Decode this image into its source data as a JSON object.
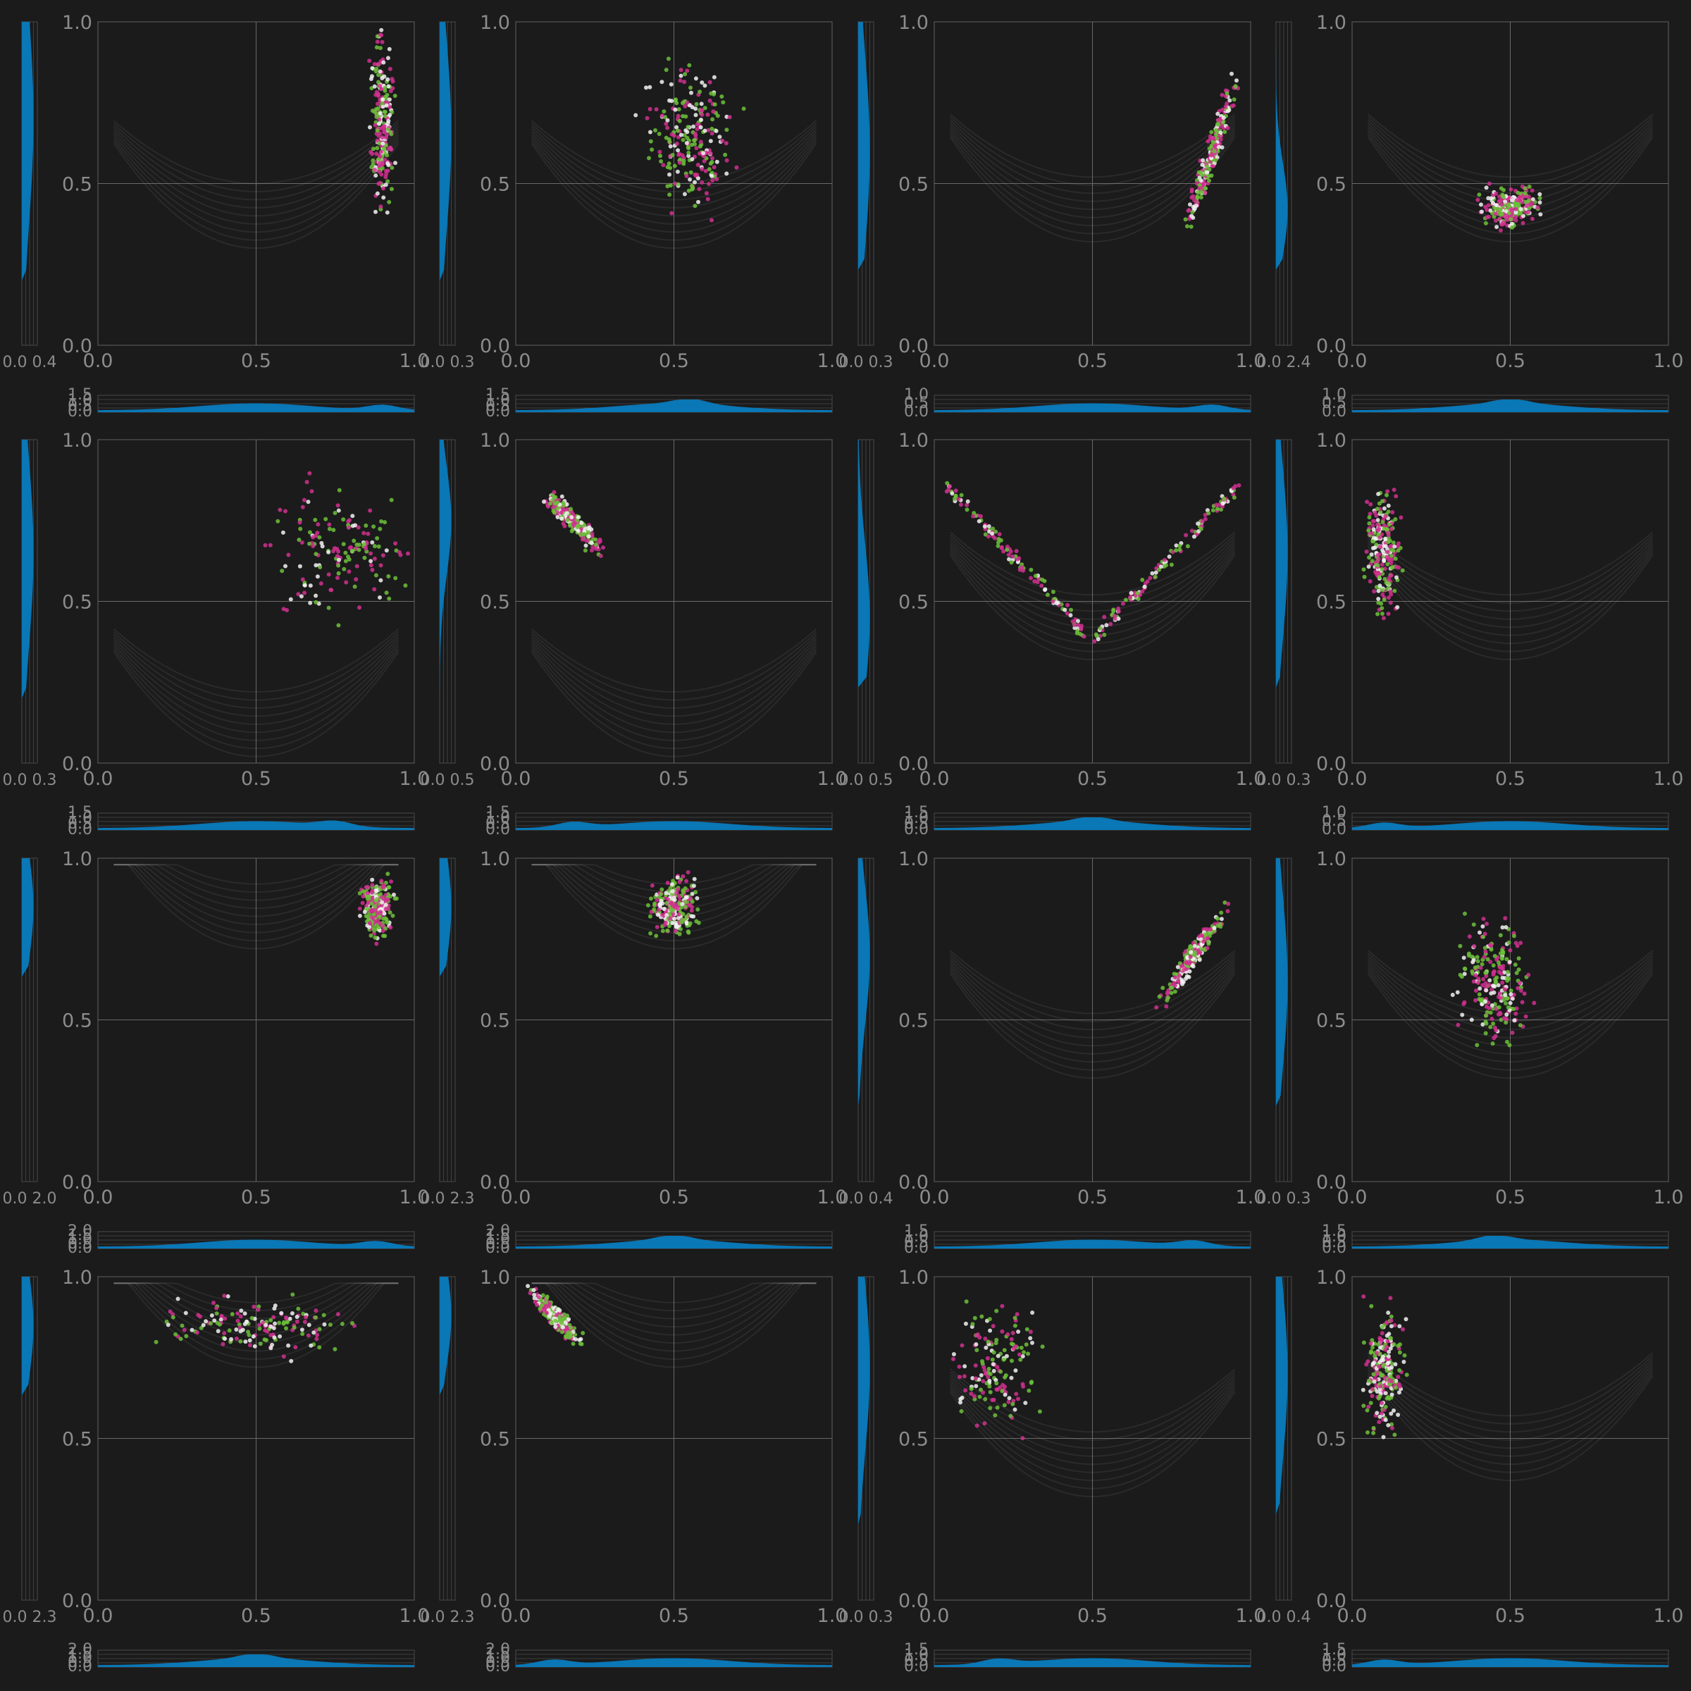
{
  "figure": {
    "background": "#1b1b1b",
    "panel_background": "#1b1b1b",
    "frame_color": "#4a4a4a",
    "grid_color": "#6a6a6a",
    "tick_color": "#8c8c8c"
  },
  "chart_data": {
    "type": "scatter",
    "layout": {
      "rows": 4,
      "cols": 4
    },
    "colors": {
      "pink": "#d0308f",
      "green": "#6cbf3a",
      "white": "#f2f2f2",
      "faint": "#9a9a9a",
      "marginal": "#0a77b6"
    },
    "panels": [
      {
        "name": "r1c1",
        "xlim": [
          0,
          1
        ],
        "ylim": [
          0,
          1
        ],
        "xticks": [
          "0.0",
          "0.5",
          "1.0"
        ],
        "yticks": [
          "0.0",
          "0.5",
          "1.0"
        ],
        "focus": [
          0.9,
          0.7
        ],
        "spread": [
          0.05,
          0.35
        ],
        "ybase": 0.0,
        "pattern": "vertical",
        "right_density_ticks": "0.0 0.4",
        "bottom_density_ticks": [
          "1.5",
          "1.0",
          "0.5",
          "0.0"
        ]
      },
      {
        "name": "r1c2",
        "xlim": [
          0,
          1
        ],
        "ylim": [
          0,
          1
        ],
        "xticks": [
          "0.0",
          "0.5",
          "1.0"
        ],
        "yticks": [
          "0.0",
          "0.5",
          "1.0"
        ],
        "focus": [
          0.55,
          0.65
        ],
        "spread": [
          0.18,
          0.3
        ],
        "ybase": 0.0,
        "pattern": "vertical",
        "right_density_ticks": "0.0 0.3",
        "bottom_density_ticks": [
          "1.5",
          "1.0",
          "0.5",
          "0.0"
        ]
      },
      {
        "name": "r1c3",
        "xlim": [
          0,
          1
        ],
        "ylim": [
          0,
          1
        ],
        "xticks": [
          "0.0",
          "0.5",
          "1.0"
        ],
        "yticks": [
          "0.0",
          "0.5",
          "1.0"
        ],
        "focus": [
          0.88,
          0.6
        ],
        "spread": [
          0.1,
          0.3
        ],
        "ybase": 0.3,
        "pattern": "diagonal",
        "right_density_ticks": "0.0 0.3",
        "bottom_density_ticks": [
          "1.0",
          "0.5",
          "0.0"
        ]
      },
      {
        "name": "r1c4",
        "xlim": [
          0,
          1
        ],
        "ylim": [
          0,
          1
        ],
        "xticks": [
          "0.0",
          "0.5",
          "1.0"
        ],
        "yticks": [
          "0.0",
          "0.5",
          "1.0"
        ],
        "focus": [
          0.5,
          0.42
        ],
        "spread": [
          0.12,
          0.08
        ],
        "ybase": 0.3,
        "pattern": "cross",
        "right_density_ticks": "0.0 2.4",
        "bottom_density_ticks": [
          "1.0",
          "0.5",
          "0.0"
        ]
      },
      {
        "name": "r2c1",
        "xlim": [
          0,
          1
        ],
        "ylim": [
          0,
          1
        ],
        "xticks": [
          "0.0",
          "0.5",
          "1.0"
        ],
        "yticks": [
          "0.0",
          "0.5",
          "1.0"
        ],
        "focus": [
          0.75,
          0.65
        ],
        "spread": [
          0.3,
          0.3
        ],
        "ybase": 0.0,
        "pattern": "sparse",
        "right_density_ticks": "0.0 0.3",
        "bottom_density_ticks": [
          "1.5",
          "1.0",
          "0.5",
          "0.0"
        ]
      },
      {
        "name": "r2c2",
        "xlim": [
          0,
          1
        ],
        "ylim": [
          0,
          1
        ],
        "xticks": [
          "0.0",
          "0.5",
          "1.0"
        ],
        "yticks": [
          "0.0",
          "0.5",
          "1.0"
        ],
        "focus": [
          0.18,
          0.75
        ],
        "spread": [
          0.12,
          0.12
        ],
        "ybase": 0.0,
        "pattern": "diagonal",
        "right_density_ticks": "0.0 0.5",
        "bottom_density_ticks": [
          "1.5",
          "1.0",
          "0.5",
          "0.0"
        ]
      },
      {
        "name": "r2c3",
        "xlim": [
          0,
          1
        ],
        "ylim": [
          0,
          1
        ],
        "xticks": [
          "0.0",
          "0.5",
          "1.0"
        ],
        "yticks": [
          "0.0",
          "0.5",
          "1.0"
        ],
        "focus": [
          0.5,
          0.45
        ],
        "spread": [
          0.4,
          0.2
        ],
        "ybase": 0.3,
        "pattern": "vshape",
        "right_density_ticks": "0.0 0.5",
        "bottom_density_ticks": [
          "1.5",
          "1.0",
          "0.5",
          "0.0"
        ]
      },
      {
        "name": "r2c4",
        "xlim": [
          0,
          1
        ],
        "ylim": [
          0,
          1
        ],
        "xticks": [
          "0.0",
          "0.5",
          "1.0"
        ],
        "yticks": [
          "0.0",
          "0.5",
          "1.0"
        ],
        "focus": [
          0.1,
          0.65
        ],
        "spread": [
          0.07,
          0.25
        ],
        "ybase": 0.3,
        "pattern": "vertical",
        "right_density_ticks": "0.0 0.3",
        "bottom_density_ticks": [
          "1.0",
          "0.5",
          "0.0"
        ]
      },
      {
        "name": "r3c1",
        "xlim": [
          0,
          1
        ],
        "ylim": [
          0,
          1
        ],
        "xticks": [
          "0.0",
          "0.5",
          "1.0"
        ],
        "yticks": [
          "0.0",
          "0.5",
          "1.0"
        ],
        "focus": [
          0.88,
          0.85
        ],
        "spread": [
          0.07,
          0.12
        ],
        "ybase": 0.7,
        "pattern": "vertical",
        "right_density_ticks": "0.0 2.0",
        "bottom_density_ticks": [
          "2.0",
          "1.5",
          "1.0",
          "0.5",
          "0.0"
        ]
      },
      {
        "name": "r3c2",
        "xlim": [
          0,
          1
        ],
        "ylim": [
          0,
          1
        ],
        "xticks": [
          "0.0",
          "0.5",
          "1.0"
        ],
        "yticks": [
          "0.0",
          "0.5",
          "1.0"
        ],
        "focus": [
          0.5,
          0.85
        ],
        "spread": [
          0.1,
          0.12
        ],
        "ybase": 0.7,
        "pattern": "vertical",
        "right_density_ticks": "0.0 2.3",
        "bottom_density_ticks": [
          "2.0",
          "1.5",
          "1.0",
          "0.5",
          "0.0"
        ]
      },
      {
        "name": "r3c3",
        "xlim": [
          0,
          1
        ],
        "ylim": [
          0,
          1
        ],
        "xticks": [
          "0.0",
          "0.5",
          "1.0"
        ],
        "yticks": [
          "0.0",
          "0.5",
          "1.0"
        ],
        "focus": [
          0.82,
          0.7
        ],
        "spread": [
          0.12,
          0.18
        ],
        "ybase": 0.3,
        "pattern": "diagonal",
        "right_density_ticks": "0.0 0.4",
        "bottom_density_ticks": [
          "1.5",
          "1.0",
          "0.5",
          "0.0"
        ]
      },
      {
        "name": "r3c4",
        "xlim": [
          0,
          1
        ],
        "ylim": [
          0,
          1
        ],
        "xticks": [
          "0.0",
          "0.5",
          "1.0"
        ],
        "yticks": [
          "0.0",
          "0.5",
          "1.0"
        ],
        "focus": [
          0.45,
          0.62
        ],
        "spread": [
          0.15,
          0.25
        ],
        "ybase": 0.3,
        "pattern": "vertical",
        "right_density_ticks": "0.0 0.3",
        "bottom_density_ticks": [
          "1.5",
          "1.0",
          "0.5",
          "0.0"
        ]
      },
      {
        "name": "r4c1",
        "xlim": [
          0,
          1
        ],
        "ylim": [
          0,
          1
        ],
        "xticks": [
          "0.0",
          "0.5",
          "1.0"
        ],
        "yticks": [
          "0.0",
          "0.5",
          "1.0"
        ],
        "focus": [
          0.5,
          0.85
        ],
        "spread": [
          0.4,
          0.12
        ],
        "ybase": 0.7,
        "pattern": "sparse",
        "right_density_ticks": "0.0 2.3",
        "bottom_density_ticks": [
          "2.0",
          "1.5",
          "1.0",
          "0.5",
          "0.0"
        ]
      },
      {
        "name": "r4c2",
        "xlim": [
          0,
          1
        ],
        "ylim": [
          0,
          1
        ],
        "xticks": [
          "0.0",
          "0.5",
          "1.0"
        ],
        "yticks": [
          "0.0",
          "0.5",
          "1.0"
        ],
        "focus": [
          0.12,
          0.88
        ],
        "spread": [
          0.1,
          0.1
        ],
        "ybase": 0.7,
        "pattern": "diagonal",
        "right_density_ticks": "0.0 2.3",
        "bottom_density_ticks": [
          "2.0",
          "1.5",
          "1.0",
          "0.5",
          "0.0"
        ]
      },
      {
        "name": "r4c3",
        "xlim": [
          0,
          1
        ],
        "ylim": [
          0,
          1
        ],
        "xticks": [
          "0.0",
          "0.5",
          "1.0"
        ],
        "yticks": [
          "0.0",
          "0.5",
          "1.0"
        ],
        "focus": [
          0.2,
          0.72
        ],
        "spread": [
          0.2,
          0.25
        ],
        "ybase": 0.3,
        "pattern": "sparse",
        "right_density_ticks": "0.0 0.3",
        "bottom_density_ticks": [
          "1.5",
          "1.0",
          "0.5",
          "0.0"
        ]
      },
      {
        "name": "r4c4",
        "xlim": [
          0,
          1
        ],
        "ylim": [
          0,
          1
        ],
        "xticks": [
          "0.0",
          "0.5",
          "1.0"
        ],
        "yticks": [
          "0.0",
          "0.5",
          "1.0"
        ],
        "focus": [
          0.1,
          0.7
        ],
        "spread": [
          0.08,
          0.25
        ],
        "ybase": 0.35,
        "pattern": "vertical",
        "right_density_ticks": "0.0 0.4",
        "bottom_density_ticks": [
          "1.5",
          "1.0",
          "0.5",
          "0.0"
        ]
      }
    ]
  }
}
